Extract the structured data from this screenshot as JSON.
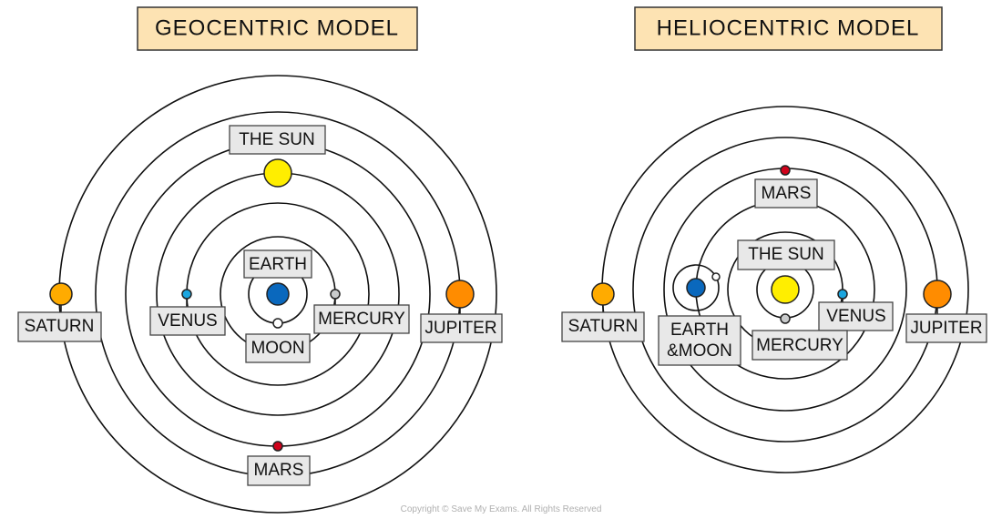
{
  "geocentric": {
    "title": "GEOCENTRIC  MODEL",
    "labels": {
      "sun": "THE  SUN",
      "earth": "EARTH",
      "venus": "VENUS",
      "mercury": "MERCURY",
      "moon": "MOON",
      "saturn": "SATURN",
      "jupiter": "JUPITER",
      "mars": "MARS"
    }
  },
  "heliocentric": {
    "title": "HELIOCENTRIC  MODEL",
    "labels": {
      "mars": "MARS",
      "sun": "THE  SUN",
      "earth_line1": "EARTH",
      "earth_line2": "&MOON",
      "mercury": "MERCURY",
      "venus": "VENUS",
      "saturn": "SATURN",
      "jupiter": "JUPITER"
    }
  },
  "colors": {
    "sun": "#ffee00",
    "earth": "#0a68bd",
    "venus": "#1ba6e0",
    "mercury": "#c9cbcc",
    "moon": "#ffffff",
    "mars": "#d0021b",
    "jupiter": "#ff8c00",
    "saturn": "#ffab00",
    "title_fill": "#fde3b3",
    "label_fill": "#e8e8e8"
  },
  "footer": {
    "copyright": "Copyright © Save My Exams. All Rights Reserved"
  }
}
